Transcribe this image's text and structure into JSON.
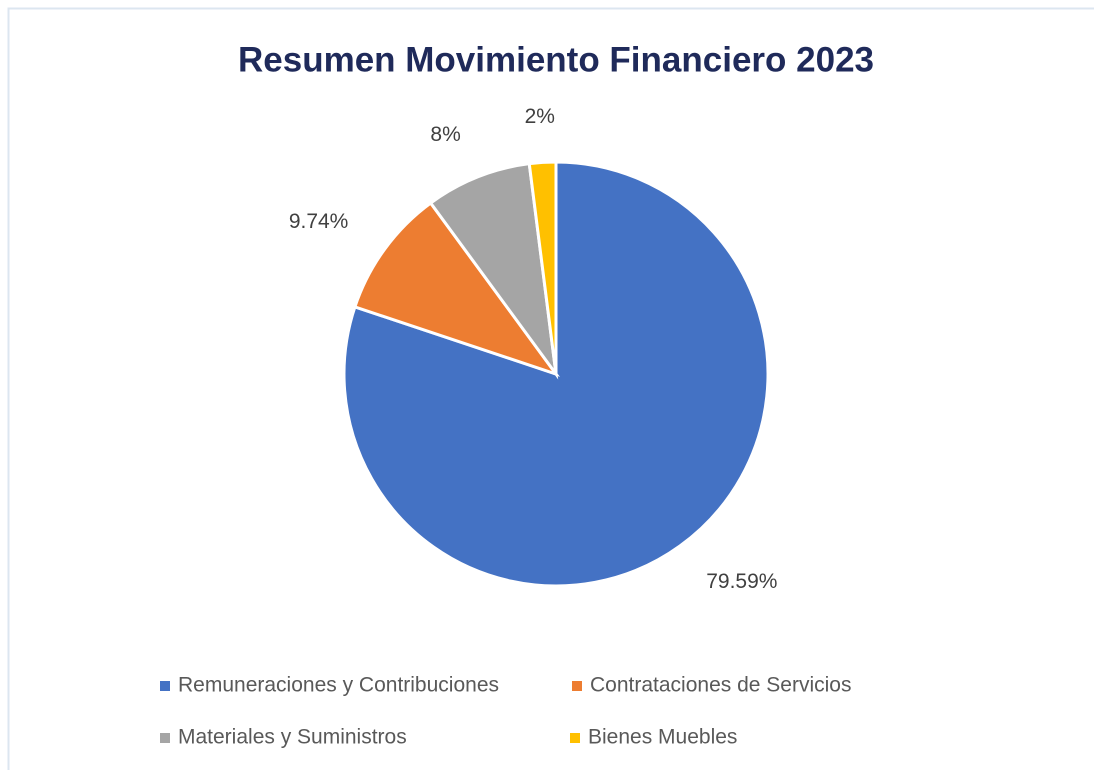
{
  "chart_data": {
    "type": "pie",
    "title": "Resumen Movimiento Financiero 2023",
    "categories": [
      "Remuneraciones y Contribuciones",
      "Contrataciones de Servicios",
      "Materiales y Suministros",
      "Bienes Muebles"
    ],
    "values": [
      79.59,
      9.74,
      8,
      2
    ],
    "value_labels": [
      "79.59%",
      "9.74%",
      "8%",
      "2%"
    ],
    "colors": [
      "#4472c4",
      "#ed7d31",
      "#a5a5a5",
      "#ffc000"
    ],
    "legend": "bottom"
  }
}
